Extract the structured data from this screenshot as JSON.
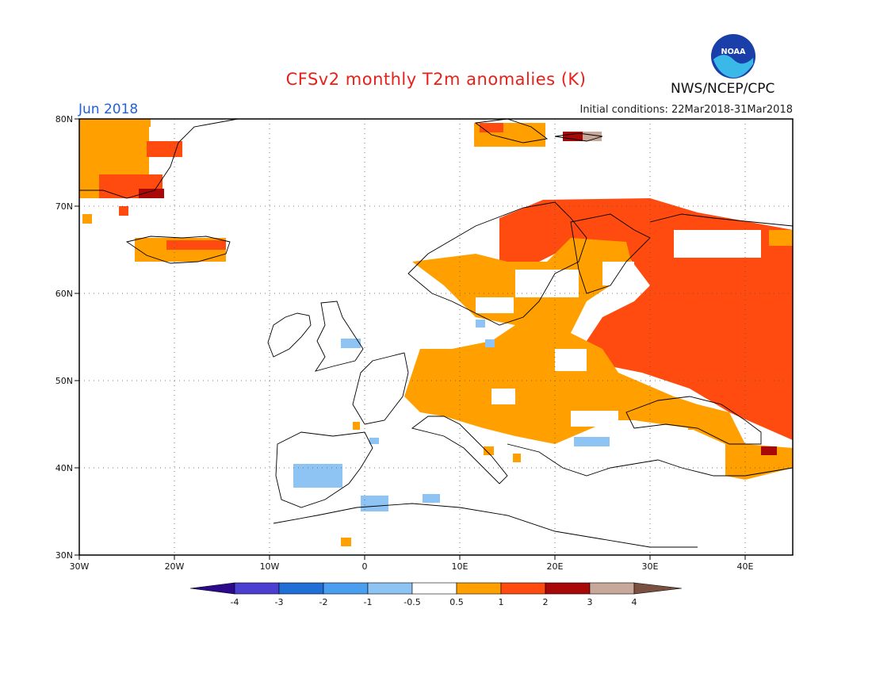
{
  "header": {
    "title": "CFSv2 monthly T2m anomalies (K)",
    "month": "Jun 2018",
    "initial_conditions": "Initial conditions: 22Mar2018-31Mar2018",
    "agency": "NWS/NCEP/CPC",
    "logo_text": "NOAA"
  },
  "map": {
    "lon_range": [
      -30,
      45
    ],
    "lat_range": [
      30,
      80
    ],
    "lon_ticks": [
      {
        "value": -30,
        "label": "30W"
      },
      {
        "value": -20,
        "label": "20W"
      },
      {
        "value": -10,
        "label": "10W"
      },
      {
        "value": 0,
        "label": "0"
      },
      {
        "value": 10,
        "label": "10E"
      },
      {
        "value": 20,
        "label": "20E"
      },
      {
        "value": 30,
        "label": "30E"
      },
      {
        "value": 40,
        "label": "40E"
      }
    ],
    "lat_ticks": [
      {
        "value": 80,
        "label": "80N"
      },
      {
        "value": 70,
        "label": "70N"
      },
      {
        "value": 60,
        "label": "60N"
      },
      {
        "value": 50,
        "label": "50N"
      },
      {
        "value": 40,
        "label": "40N"
      },
      {
        "value": 30,
        "label": "30N"
      }
    ],
    "gridlines": "dotted"
  },
  "colorbar": {
    "labels": [
      "-4",
      "-3",
      "-2",
      "-1",
      "-0.5",
      "0.5",
      "1",
      "2",
      "3",
      "4"
    ],
    "colors": [
      "#2a0a8a",
      "#4a3fd0",
      "#1f6fd6",
      "#4a9ef0",
      "#8ec4f4",
      "#ffffff",
      "#ffa000",
      "#ff4a10",
      "#a80808",
      "#c8a898",
      "#7a5040"
    ]
  },
  "land_color": "#ffffff",
  "coast_color": "#000000"
}
